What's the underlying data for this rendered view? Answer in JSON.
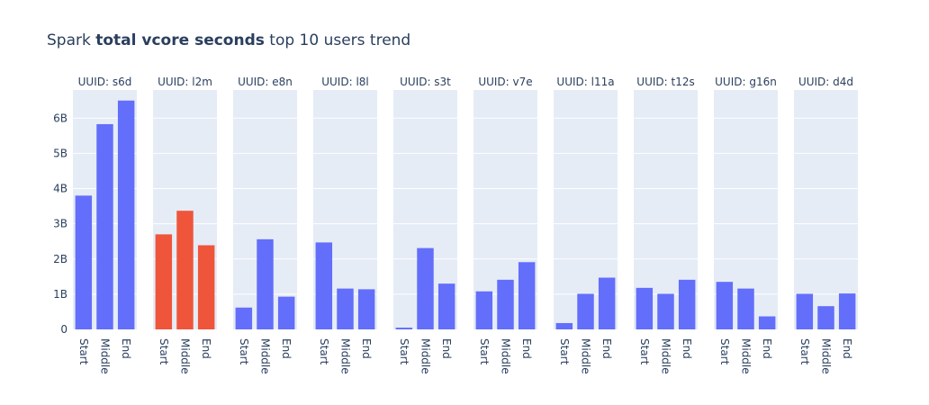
{
  "title": {
    "prefix": "Spark ",
    "bold": "total vcore seconds",
    "suffix": " top 10 users trend"
  },
  "colors": {
    "default_bar": "#636efa",
    "highlight_bar": "#ef553b",
    "panel_bg": "#e5ecf6",
    "text": "#2a3f5f"
  },
  "chart_data": {
    "type": "bar",
    "faceted": true,
    "categories": [
      "Start",
      "Middle",
      "End"
    ],
    "ylim": [
      0,
      6.8
    ],
    "yunit": "B",
    "yticks": [
      {
        "value": 0,
        "label": "0"
      },
      {
        "value": 1,
        "label": "1B"
      },
      {
        "value": 2,
        "label": "2B"
      },
      {
        "value": 3,
        "label": "3B"
      },
      {
        "value": 4,
        "label": "4B"
      },
      {
        "value": 5,
        "label": "5B"
      },
      {
        "value": 6,
        "label": "6B"
      }
    ],
    "grid": true,
    "panels": [
      {
        "label": "UUID: s6d",
        "values": [
          3.8,
          5.83,
          6.5
        ],
        "highlight": false
      },
      {
        "label": "UUID: l2m",
        "values": [
          2.7,
          3.37,
          2.39
        ],
        "highlight": true
      },
      {
        "label": "UUID: e8n",
        "values": [
          0.62,
          2.56,
          0.93
        ],
        "highlight": false
      },
      {
        "label": "UUID: l8l",
        "values": [
          2.47,
          1.16,
          1.14
        ],
        "highlight": false
      },
      {
        "label": "UUID: s3t",
        "values": [
          0.05,
          2.31,
          1.3
        ],
        "highlight": false
      },
      {
        "label": "UUID: v7e",
        "values": [
          1.08,
          1.41,
          1.91
        ],
        "highlight": false
      },
      {
        "label": "UUID: l11a",
        "values": [
          0.18,
          1.01,
          1.47
        ],
        "highlight": false
      },
      {
        "label": "UUID: t12s",
        "values": [
          1.18,
          1.01,
          1.41
        ],
        "highlight": false
      },
      {
        "label": "UUID: g16n",
        "values": [
          1.35,
          1.16,
          0.37
        ],
        "highlight": false
      },
      {
        "label": "UUID: d4d",
        "values": [
          1.01,
          0.66,
          1.02
        ],
        "highlight": false
      }
    ]
  }
}
